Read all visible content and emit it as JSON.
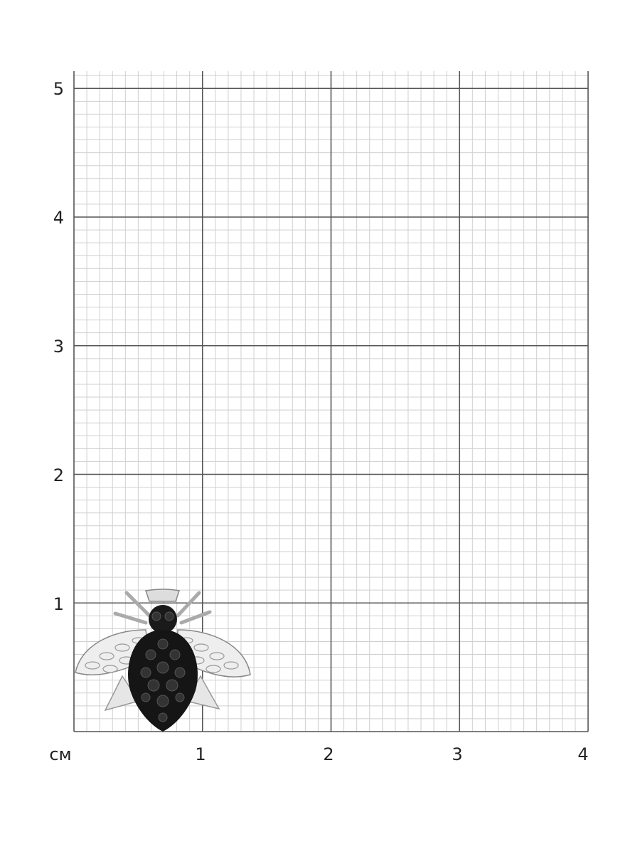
{
  "measurement_grid": {
    "unit_label": "см",
    "x_ticks": [
      "1",
      "2",
      "3",
      "4"
    ],
    "y_ticks": [
      "1",
      "2",
      "3",
      "4",
      "5"
    ],
    "x_range_cm": [
      0,
      4
    ],
    "y_range_cm": [
      0,
      5
    ],
    "minor_step_mm": 1,
    "major_line_color": "#555555",
    "minor_line_color": "#cfcfcf"
  },
  "product": {
    "icon": "bee-brooch-image",
    "metal_color": "#d9d9d9",
    "stone_color": "#111111"
  }
}
